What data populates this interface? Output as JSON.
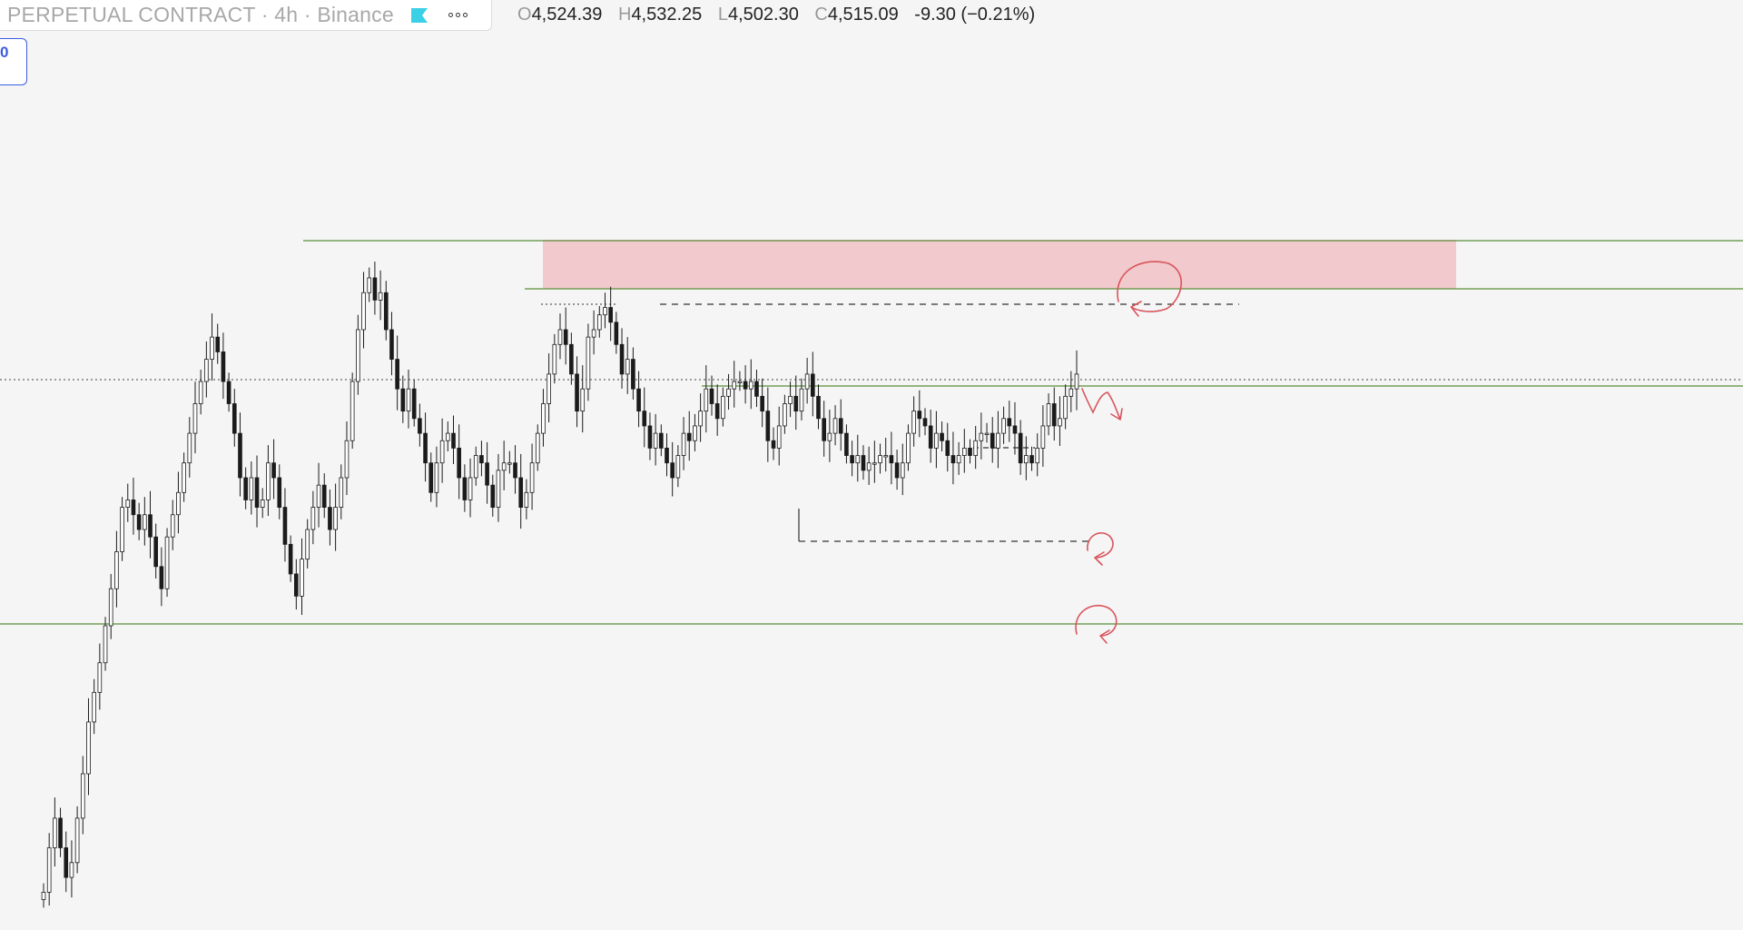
{
  "header": {
    "symbol_title": "PERPETUAL CONTRACT · 4h · Binance",
    "flag_icon": "flag-icon",
    "more_icon": "more-icon",
    "ohlc": {
      "open_label": "O",
      "open": "4,524.39",
      "high_label": "H",
      "high": "4,532.25",
      "low_label": "L",
      "low": "4,502.30",
      "close_label": "C",
      "close": "4,515.09",
      "change": "-9.30 (−0.21%)"
    }
  },
  "badge": {
    "text": "0"
  },
  "colors": {
    "background": "#f5f5f5",
    "candle": "#1b1b1b",
    "level_line": "#5c8f3a",
    "zone_fill": "#f2c9cc",
    "annotation": "#d9545c",
    "accent": "#3b5ce0",
    "flag": "#3ad0e6"
  },
  "chart_data": {
    "type": "candlestick",
    "timeframe": "4h",
    "price_axis": "hidden",
    "last_close": 4515.09,
    "series_shape": [
      0.04,
      0.1,
      0.14,
      0.1,
      0.06,
      0.08,
      0.14,
      0.2,
      0.27,
      0.31,
      0.35,
      0.4,
      0.45,
      0.5,
      0.56,
      0.57,
      0.55,
      0.53,
      0.55,
      0.52,
      0.48,
      0.45,
      0.52,
      0.55,
      0.58,
      0.62,
      0.66,
      0.7,
      0.73,
      0.76,
      0.79,
      0.77,
      0.73,
      0.7,
      0.66,
      0.6,
      0.57,
      0.6,
      0.56,
      0.57,
      0.62,
      0.6,
      0.56,
      0.51,
      0.47,
      0.44,
      0.49,
      0.53,
      0.56,
      0.59,
      0.56,
      0.53,
      0.56,
      0.6,
      0.65,
      0.73,
      0.8,
      0.85,
      0.87,
      0.84,
      0.85,
      0.8,
      0.76,
      0.72,
      0.69,
      0.72,
      0.68,
      0.66,
      0.62,
      0.58,
      0.62,
      0.65,
      0.66,
      0.64,
      0.6,
      0.57,
      0.6,
      0.63,
      0.62,
      0.59,
      0.56,
      0.61,
      0.62,
      0.62,
      0.6,
      0.56,
      0.58,
      0.62,
      0.66,
      0.7,
      0.74,
      0.78,
      0.8,
      0.78,
      0.74,
      0.69,
      0.72,
      0.79,
      0.8,
      0.82,
      0.83,
      0.81,
      0.78,
      0.74,
      0.76,
      0.72,
      0.69,
      0.67,
      0.64,
      0.66,
      0.64,
      0.62,
      0.6,
      0.63,
      0.66,
      0.65,
      0.67,
      0.69,
      0.72,
      0.7,
      0.68,
      0.71,
      0.72,
      0.73,
      0.73,
      0.72,
      0.73,
      0.71,
      0.69,
      0.65,
      0.64,
      0.67,
      0.7,
      0.71,
      0.69,
      0.72,
      0.74,
      0.71,
      0.68,
      0.65,
      0.66,
      0.68,
      0.66,
      0.63,
      0.62,
      0.63,
      0.61,
      0.62,
      0.62,
      0.63,
      0.63,
      0.62,
      0.6,
      0.62,
      0.66,
      0.69,
      0.68,
      0.67,
      0.64,
      0.66,
      0.65,
      0.63,
      0.62,
      0.63,
      0.64,
      0.63,
      0.65,
      0.66,
      0.66,
      0.64,
      0.66,
      0.68,
      0.67,
      0.66,
      0.62,
      0.63,
      0.62,
      0.64,
      0.67,
      0.7,
      0.67,
      0.68,
      0.71,
      0.72,
      0.74
    ]
  }
}
